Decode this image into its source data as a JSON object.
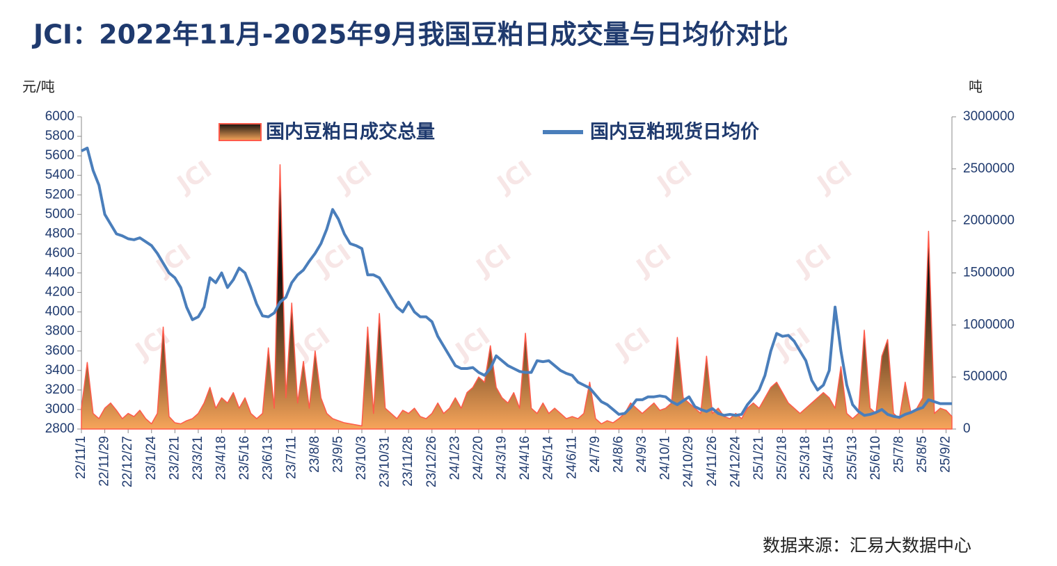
{
  "chart_data": {
    "type": "line-area",
    "title": "JCI：2022年11月-2025年9月我国豆粕日成交量与日均价对比",
    "y_label": "元/吨",
    "y2_label": "吨",
    "source": "数据来源：汇易大数据中心",
    "watermark": "JCI",
    "categories": [
      "22/11/1",
      null,
      null,
      null,
      "22/11/29",
      null,
      null,
      null,
      "22/12/27",
      null,
      null,
      null,
      "23/1/24",
      null,
      null,
      null,
      "23/2/21",
      null,
      null,
      null,
      "23/3/21",
      null,
      null,
      null,
      "23/4/18",
      null,
      null,
      null,
      "23/5/16",
      null,
      null,
      null,
      "23/6/13",
      null,
      null,
      null,
      "23/7/11",
      null,
      null,
      null,
      "23/8/8",
      null,
      null,
      null,
      "23/9/5",
      null,
      null,
      null,
      "23/10/3",
      null,
      null,
      null,
      "23/10/31",
      null,
      null,
      null,
      "23/11/28",
      null,
      null,
      null,
      "23/12/26",
      null,
      null,
      null,
      "24/1/23",
      null,
      null,
      null,
      "24/2/20",
      null,
      null,
      null,
      "24/3/19",
      null,
      null,
      null,
      "24/4/16",
      null,
      null,
      null,
      "24/5/14",
      null,
      null,
      null,
      "24/6/11",
      null,
      null,
      null,
      "24/7/9",
      null,
      null,
      null,
      "24/8/6",
      null,
      null,
      null,
      "24/9/3",
      null,
      null,
      null,
      "24/10/1",
      null,
      null,
      null,
      "24/10/29",
      null,
      null,
      null,
      "24/11/26",
      null,
      null,
      null,
      "24/12/24",
      null,
      null,
      null,
      "25/1/21",
      null,
      null,
      null,
      "25/2/18",
      null,
      null,
      null,
      "25/3/18",
      null,
      null,
      null,
      "25/4/15",
      null,
      null,
      null,
      "25/5/13",
      null,
      null,
      null,
      "25/6/10",
      null,
      null,
      null,
      "25/7/8",
      null,
      null,
      null,
      "25/8/5",
      null,
      null,
      null,
      "25/9/2",
      null
    ],
    "series": [
      {
        "name": "国内豆粕日成交总量",
        "kind": "area",
        "axis": "y2",
        "color": "#ff5a4a",
        "values": [
          200000,
          640000,
          150000,
          100000,
          200000,
          250000,
          180000,
          100000,
          150000,
          120000,
          180000,
          100000,
          50000,
          150000,
          980000,
          120000,
          60000,
          50000,
          80000,
          100000,
          150000,
          250000,
          400000,
          200000,
          300000,
          250000,
          350000,
          200000,
          300000,
          150000,
          100000,
          150000,
          780000,
          200000,
          2540000,
          300000,
          1210000,
          250000,
          650000,
          200000,
          750000,
          300000,
          150000,
          100000,
          80000,
          60000,
          50000,
          40000,
          30000,
          980000,
          150000,
          1110000,
          200000,
          150000,
          100000,
          180000,
          150000,
          200000,
          120000,
          100000,
          150000,
          250000,
          150000,
          200000,
          300000,
          200000,
          350000,
          400000,
          500000,
          450000,
          800000,
          400000,
          300000,
          250000,
          350000,
          200000,
          920000,
          200000,
          150000,
          250000,
          150000,
          200000,
          150000,
          100000,
          120000,
          100000,
          150000,
          450000,
          100000,
          50000,
          80000,
          60000,
          100000,
          150000,
          250000,
          200000,
          150000,
          200000,
          250000,
          180000,
          200000,
          250000,
          880000,
          300000,
          250000,
          200000,
          150000,
          700000,
          150000,
          200000,
          120000,
          100000,
          150000,
          100000,
          200000,
          250000,
          200000,
          300000,
          400000,
          450000,
          350000,
          250000,
          200000,
          150000,
          200000,
          250000,
          300000,
          350000,
          300000,
          200000,
          600000,
          150000,
          100000,
          150000,
          950000,
          200000,
          150000,
          700000,
          860000,
          150000,
          100000,
          450000,
          150000,
          200000,
          300000,
          1900000,
          150000,
          200000,
          180000,
          120000
        ]
      },
      {
        "name": "国内豆粕现货日均价",
        "kind": "line",
        "axis": "y",
        "color": "#4a7ebb",
        "values": [
          5650,
          5680,
          5450,
          5300,
          5000,
          4900,
          4800,
          4780,
          4750,
          4740,
          4760,
          4720,
          4680,
          4600,
          4500,
          4400,
          4350,
          4250,
          4050,
          3920,
          3950,
          4050,
          4350,
          4300,
          4400,
          4250,
          4330,
          4450,
          4400,
          4250,
          4080,
          3960,
          3950,
          3990,
          4100,
          4150,
          4300,
          4380,
          4430,
          4520,
          4600,
          4700,
          4850,
          5050,
          4950,
          4800,
          4700,
          4680,
          4650,
          4380,
          4380,
          4350,
          4250,
          4150,
          4050,
          4000,
          4100,
          4000,
          3950,
          3950,
          3900,
          3750,
          3650,
          3550,
          3450,
          3420,
          3420,
          3430,
          3380,
          3350,
          3420,
          3550,
          3500,
          3450,
          3420,
          3390,
          3380,
          3380,
          3500,
          3490,
          3500,
          3450,
          3400,
          3370,
          3350,
          3280,
          3250,
          3220,
          3150,
          3080,
          3050,
          3000,
          2950,
          2960,
          3020,
          3100,
          3100,
          3130,
          3130,
          3140,
          3130,
          3080,
          3050,
          3090,
          3130,
          3030,
          3000,
          2980,
          3010,
          2960,
          2940,
          2950,
          2940,
          2950,
          3050,
          3120,
          3200,
          3350,
          3600,
          3780,
          3750,
          3760,
          3700,
          3600,
          3500,
          3300,
          3200,
          3250,
          3400,
          4050,
          3600,
          3250,
          3050,
          2980,
          2940,
          2950,
          2970,
          3000,
          2950,
          2930,
          2920,
          2950,
          2970,
          3000,
          3020,
          3100,
          3080,
          3060,
          3060,
          3060
        ]
      }
    ],
    "ylim": [
      2800,
      6000
    ],
    "yticks": [
      2800,
      3000,
      3200,
      3400,
      3600,
      3800,
      4000,
      4200,
      4400,
      4600,
      4800,
      5000,
      5200,
      5400,
      5600,
      5800,
      6000
    ],
    "y2lim": [
      0,
      3000000
    ],
    "y2ticks": [
      0,
      500000,
      1000000,
      1500000,
      2000000,
      2500000,
      3000000
    ]
  }
}
